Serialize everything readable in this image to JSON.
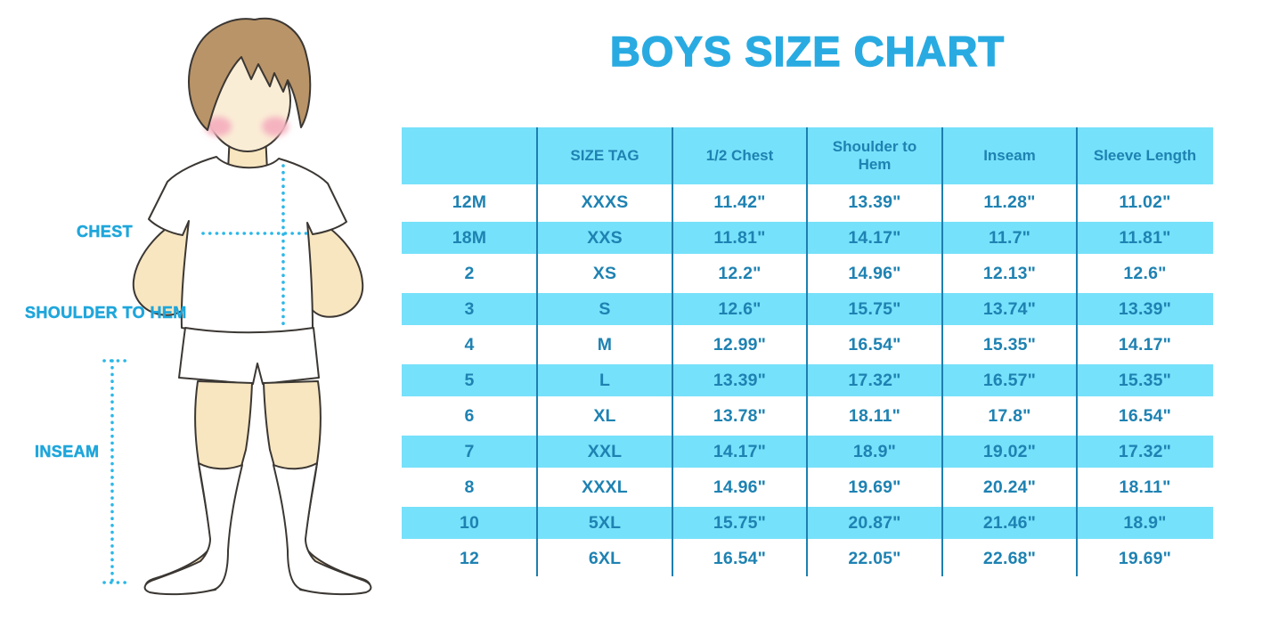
{
  "title": "BOYS SIZE CHART",
  "figure": {
    "labels": [
      {
        "text": "CHEST"
      },
      {
        "text": "SHOULDER TO HEM"
      },
      {
        "text": "INSEAM"
      }
    ]
  },
  "chart_data": {
    "type": "table",
    "title": "BOYS SIZE CHART",
    "columns": [
      "",
      "SIZE TAG",
      "1/2 Chest",
      "Shoulder to Hem",
      "Inseam",
      "Sleeve Length"
    ],
    "rows": [
      [
        "12M",
        "XXXS",
        "11.42\"",
        "13.39\"",
        "11.28\"",
        "11.02\""
      ],
      [
        "18M",
        "XXS",
        "11.81\"",
        "14.17\"",
        "11.7\"",
        "11.81\""
      ],
      [
        "2",
        "XS",
        "12.2\"",
        "14.96\"",
        "12.13\"",
        "12.6\""
      ],
      [
        "3",
        "S",
        "12.6\"",
        "15.75\"",
        "13.74\"",
        "13.39\""
      ],
      [
        "4",
        "M",
        "12.99\"",
        "16.54\"",
        "15.35\"",
        "14.17\""
      ],
      [
        "5",
        "L",
        "13.39\"",
        "17.32\"",
        "16.57\"",
        "15.35\""
      ],
      [
        "6",
        "XL",
        "13.78\"",
        "18.11\"",
        "17.8\"",
        "16.54\""
      ],
      [
        "7",
        "XXL",
        "14.17\"",
        "18.9\"",
        "19.02\"",
        "17.32\""
      ],
      [
        "8",
        "XXXL",
        "14.96\"",
        "19.69\"",
        "20.24\"",
        "18.11\""
      ],
      [
        "10",
        "5XL",
        "15.75\"",
        "20.87\"",
        "21.46\"",
        "18.9\""
      ],
      [
        "12",
        "6XL",
        "16.54\"",
        "22.05\"",
        "22.68\"",
        "19.69\""
      ]
    ],
    "layout": {
      "striped_row_indices": [
        1,
        3,
        5,
        7,
        9
      ],
      "header_filled": true,
      "grid": "vertical-only"
    }
  },
  "colors": {
    "title_blue": "#29ABE2",
    "label_blue": "#1FA6DB",
    "table_text": "#1E82B2",
    "stripe": "#76E1FA",
    "grid_line": "#1D7FB0",
    "dotted_line": "#2BB7E8",
    "outline": "#3B3733",
    "skin": "#F8E6C0",
    "face": "#FAEDD6",
    "hair": "#B99468",
    "cheek": "#F5B3C0"
  }
}
